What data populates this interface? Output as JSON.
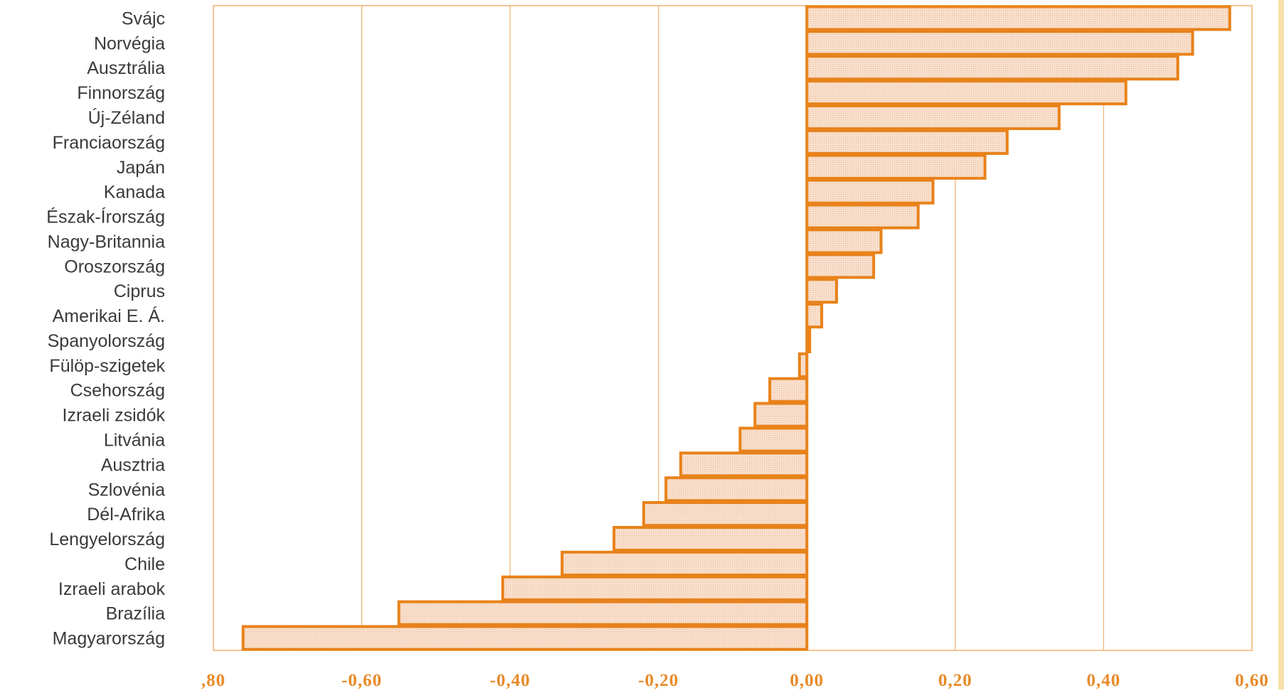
{
  "colors": {
    "bar_outline": "#e8821a",
    "bar_fill": "#f7d8c0",
    "tick_text": "#e88a2a",
    "grid": "#f0b070",
    "edge_stripe": "#f6dfa8"
  },
  "chart_data": {
    "type": "bar",
    "orientation": "horizontal",
    "categories": [
      "Svájc",
      "Norvégia",
      "Ausztrália",
      "Finnország",
      "Új-Zéland",
      "Franciaország",
      "Japán",
      "Kanada",
      "Észak-Írország",
      "Nagy-Britannia",
      "Oroszország",
      "Ciprus",
      "Amerikai E. Á.",
      "Spanyolország",
      "Fülöp-szigetek",
      "Csehország",
      "Izraeli zsidók",
      "Litvánia",
      "Ausztria",
      "Szlovénia",
      "Dél-Afrika",
      "Lengyelország",
      "Chile",
      "Izraeli arabok",
      "Brazília",
      "Magyarország"
    ],
    "values": [
      0.57,
      0.52,
      0.5,
      0.43,
      0.34,
      0.27,
      0.24,
      0.17,
      0.15,
      0.1,
      0.09,
      0.04,
      0.02,
      0.0,
      -0.01,
      -0.05,
      -0.07,
      -0.09,
      -0.17,
      -0.19,
      -0.22,
      -0.26,
      -0.33,
      -0.41,
      -0.55,
      -0.76
    ],
    "xlim": [
      -0.8,
      0.6
    ],
    "xticks": [
      -0.8,
      -0.6,
      -0.4,
      -0.2,
      0.0,
      0.2,
      0.4,
      0.6
    ],
    "xtick_labels": [
      ",80",
      "-0,60",
      "-0,40",
      "-0,20",
      "0,00",
      "0,20",
      "0,40",
      "0,60"
    ],
    "grid": true,
    "title": "",
    "xlabel": "",
    "ylabel": ""
  }
}
